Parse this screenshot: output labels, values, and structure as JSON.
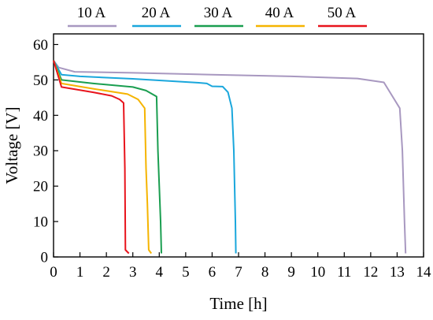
{
  "chart_data": {
    "type": "line",
    "xlabel": "Time [h]",
    "ylabel": "Voltage [V]",
    "xlim": [
      0,
      14
    ],
    "ylim": [
      0,
      63
    ],
    "xticks": [
      "0",
      "1",
      "2",
      "3",
      "4",
      "5",
      "6",
      "7",
      "8",
      "9",
      "10",
      "11",
      "12",
      "13",
      "14"
    ],
    "yticks": [
      "0",
      "10",
      "20",
      "30",
      "40",
      "50",
      "60"
    ],
    "grid": false,
    "legend_position": "top",
    "series": [
      {
        "name": "10 A",
        "color": "#a898c0",
        "points": [
          [
            0,
            55.5
          ],
          [
            0.2,
            53.5
          ],
          [
            0.8,
            52.3
          ],
          [
            3,
            52.0
          ],
          [
            6,
            51.5
          ],
          [
            9,
            51.0
          ],
          [
            11.5,
            50.4
          ],
          [
            12.5,
            49.3
          ],
          [
            13.1,
            42.0
          ],
          [
            13.2,
            30.0
          ],
          [
            13.28,
            10.0
          ],
          [
            13.32,
            1.0
          ]
        ]
      },
      {
        "name": "20 A",
        "color": "#1aa7dc",
        "points": [
          [
            0,
            55.5
          ],
          [
            0.3,
            51.5
          ],
          [
            1,
            51.0
          ],
          [
            3,
            50.3
          ],
          [
            5.5,
            49.2
          ],
          [
            5.8,
            49.0
          ],
          [
            6.0,
            48.2
          ],
          [
            6.4,
            48.1
          ],
          [
            6.6,
            46.5
          ],
          [
            6.75,
            42.0
          ],
          [
            6.82,
            30.0
          ],
          [
            6.88,
            10.0
          ],
          [
            6.9,
            1.0
          ]
        ]
      },
      {
        "name": "30 A",
        "color": "#1a9e50",
        "points": [
          [
            0,
            55.5
          ],
          [
            0.3,
            50.0
          ],
          [
            1.5,
            49.0
          ],
          [
            3,
            48.0
          ],
          [
            3.5,
            47.0
          ],
          [
            3.9,
            45.3
          ],
          [
            3.95,
            30.0
          ],
          [
            4.0,
            20.0
          ],
          [
            4.05,
            10.0
          ],
          [
            4.08,
            1.0
          ]
        ]
      },
      {
        "name": "40 A",
        "color": "#f5b400",
        "points": [
          [
            0,
            55.5
          ],
          [
            0.3,
            49.0
          ],
          [
            1.5,
            47.5
          ],
          [
            2.8,
            46.0
          ],
          [
            3.2,
            44.5
          ],
          [
            3.45,
            42.0
          ],
          [
            3.5,
            25.0
          ],
          [
            3.55,
            15.0
          ],
          [
            3.6,
            2.0
          ],
          [
            3.7,
            1.0
          ]
        ]
      },
      {
        "name": "50 A",
        "color": "#e8141c",
        "points": [
          [
            0,
            55.5
          ],
          [
            0.3,
            48.0
          ],
          [
            1.5,
            46.5
          ],
          [
            2.2,
            45.5
          ],
          [
            2.5,
            44.5
          ],
          [
            2.65,
            43.5
          ],
          [
            2.7,
            25.0
          ],
          [
            2.72,
            2.0
          ],
          [
            2.85,
            1.0
          ]
        ]
      }
    ]
  }
}
